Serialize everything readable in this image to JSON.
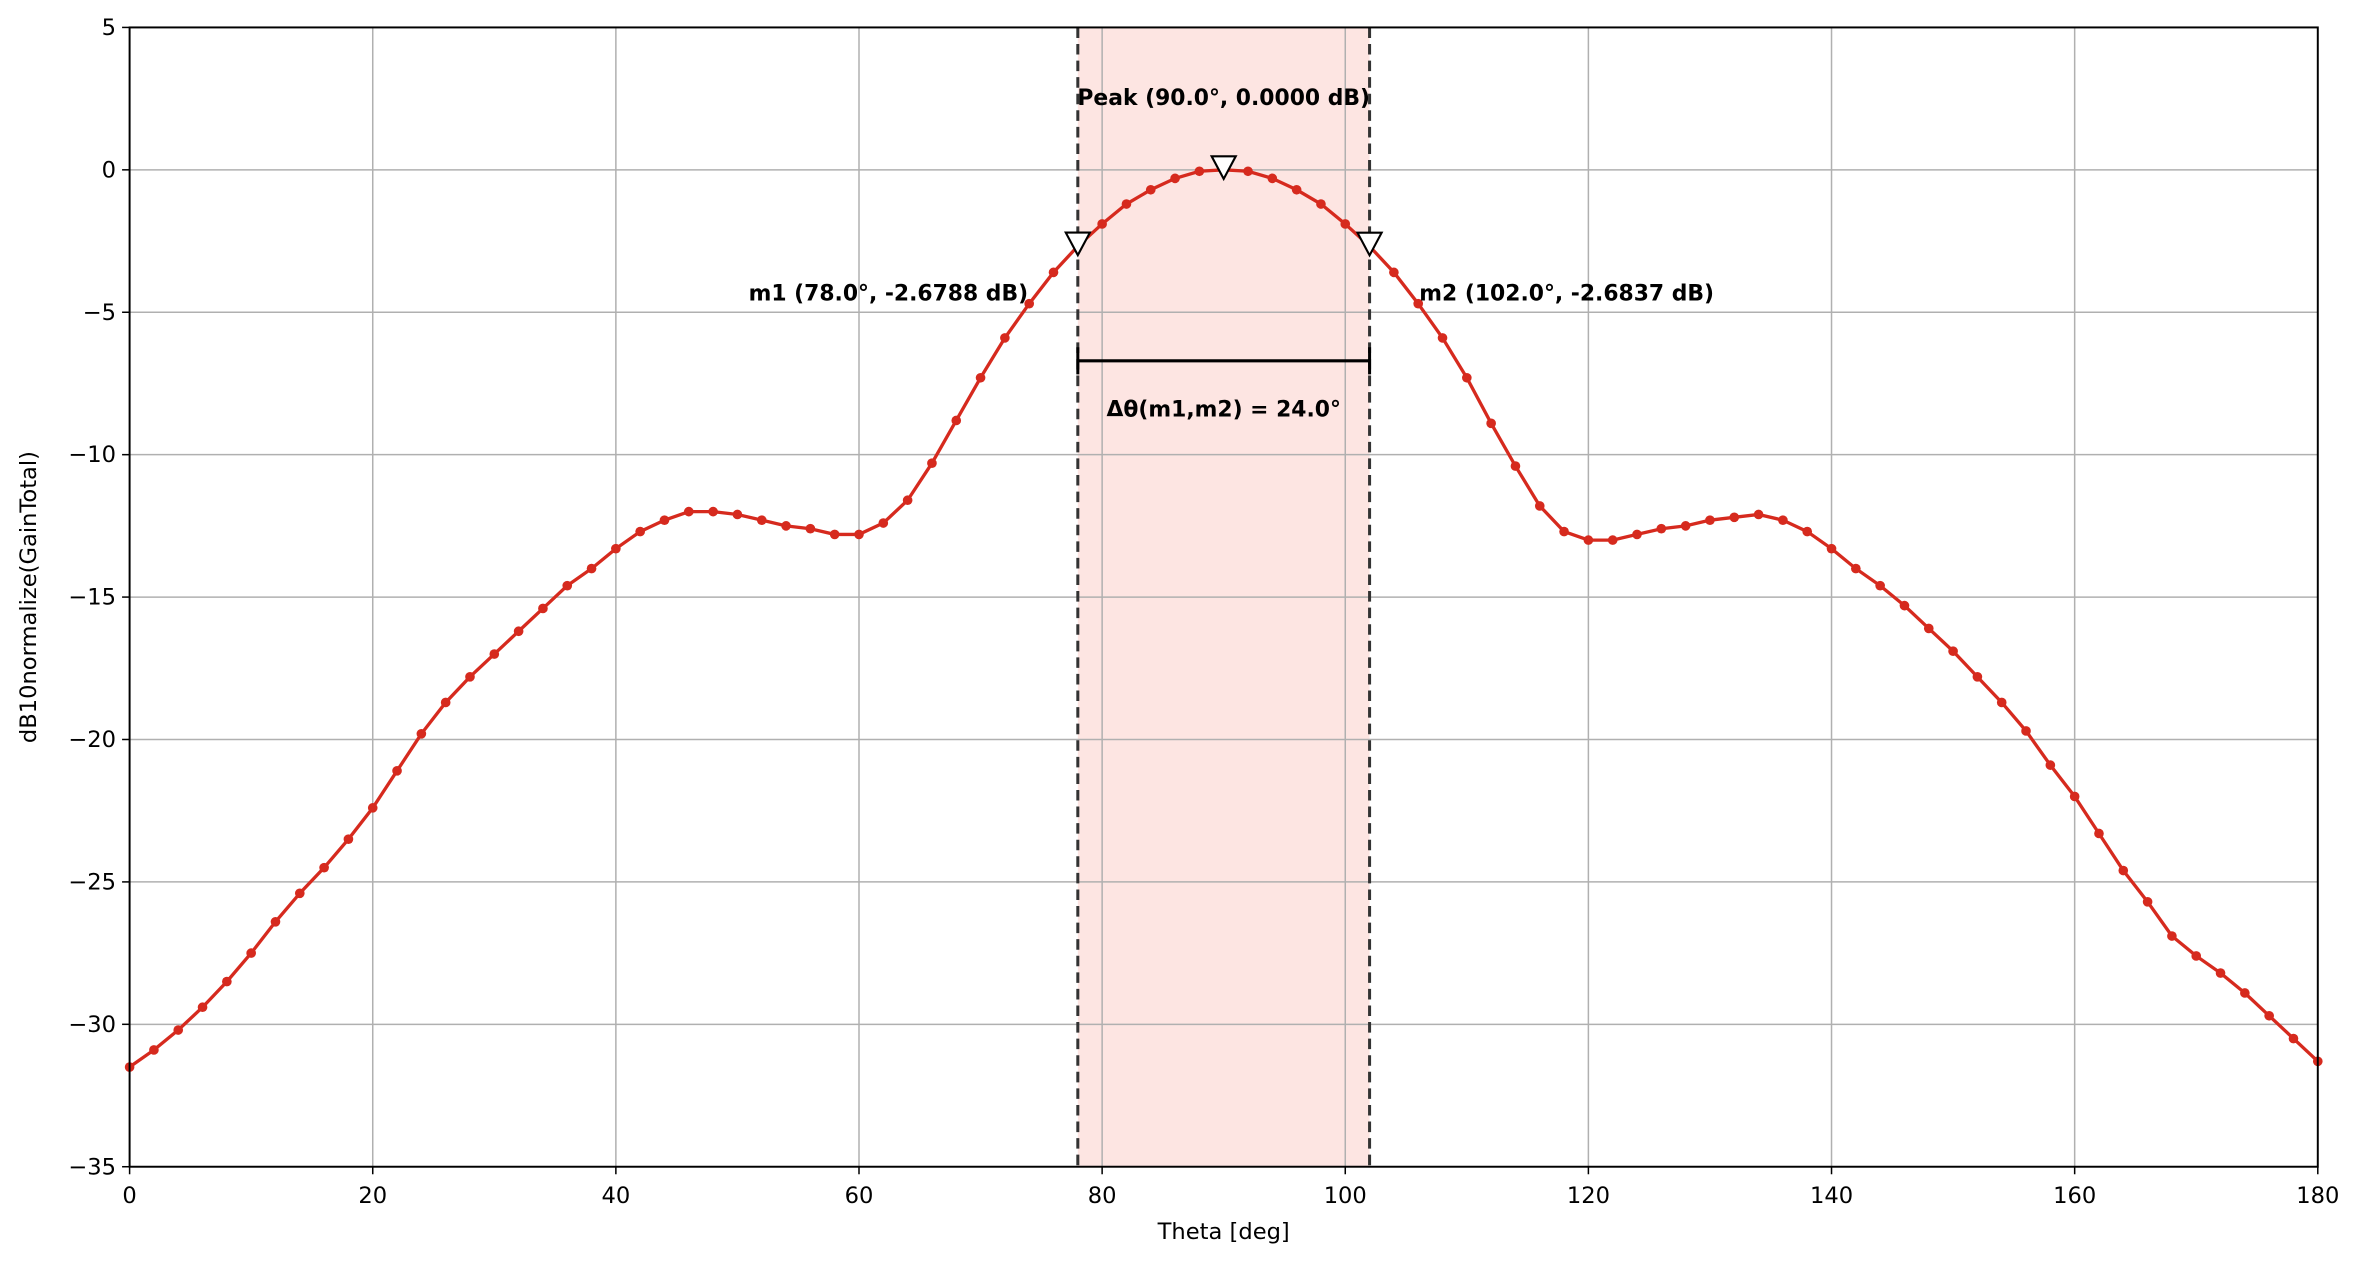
{
  "chart_data": {
    "type": "line",
    "xlabel": "Theta [deg]",
    "ylabel": "dB10normalize(GainTotal)",
    "x": [
      0,
      2,
      4,
      6,
      8,
      10,
      12,
      14,
      16,
      18,
      20,
      22,
      24,
      26,
      28,
      30,
      32,
      34,
      36,
      38,
      40,
      42,
      44,
      46,
      48,
      50,
      52,
      54,
      56,
      58,
      60,
      62,
      64,
      66,
      68,
      70,
      72,
      74,
      76,
      78,
      80,
      82,
      84,
      86,
      88,
      90,
      92,
      94,
      96,
      98,
      100,
      102,
      104,
      106,
      108,
      110,
      112,
      114,
      116,
      118,
      120,
      122,
      124,
      126,
      128,
      130,
      132,
      134,
      136,
      138,
      140,
      142,
      144,
      146,
      148,
      150,
      152,
      154,
      156,
      158,
      160,
      162,
      164,
      166,
      168,
      170,
      172,
      174,
      176,
      178,
      180
    ],
    "values": [
      -31.5,
      -30.9,
      -30.2,
      -29.4,
      -28.5,
      -27.5,
      -26.4,
      -25.4,
      -24.5,
      -23.5,
      -22.4,
      -21.1,
      -19.8,
      -18.7,
      -17.8,
      -17.0,
      -16.2,
      -15.4,
      -14.6,
      -14.0,
      -13.3,
      -12.7,
      -12.3,
      -12.0,
      -12.0,
      -12.1,
      -12.3,
      -12.5,
      -12.6,
      -12.8,
      -12.8,
      -12.4,
      -11.6,
      -10.3,
      -8.8,
      -7.3,
      -5.9,
      -4.7,
      -3.6,
      -2.6788,
      -1.9,
      -1.2,
      -0.7,
      -0.3,
      -0.05,
      0,
      -0.05,
      -0.3,
      -0.7,
      -1.2,
      -1.9,
      -2.6837,
      -3.6,
      -4.7,
      -5.9,
      -7.3,
      -8.9,
      -10.4,
      -11.8,
      -12.7,
      -13.0,
      -13.0,
      -12.8,
      -12.6,
      -12.5,
      -12.3,
      -12.2,
      -12.1,
      -12.3,
      -12.7,
      -13.3,
      -14.0,
      -14.6,
      -15.3,
      -16.1,
      -16.9,
      -17.8,
      -18.7,
      -19.7,
      -20.9,
      -22.0,
      -23.3,
      -24.6,
      -25.7,
      -26.9,
      -27.6,
      -28.2,
      -28.9,
      -29.7,
      -30.5,
      -31.3
    ],
    "color": "#d62a1e",
    "xlim": [
      0,
      180
    ],
    "ylim": [
      -35,
      5
    ],
    "xticks": [
      0,
      20,
      40,
      60,
      80,
      100,
      120,
      140,
      160,
      180
    ],
    "yticks": [
      {
        "value": -35,
        "label": "−35"
      },
      {
        "value": -30,
        "label": "−30"
      },
      {
        "value": -25,
        "label": "−25"
      },
      {
        "value": -20,
        "label": "−20"
      },
      {
        "value": -15,
        "label": "−15"
      },
      {
        "value": -10,
        "label": "−10"
      },
      {
        "value": -5,
        "label": "−5"
      },
      0,
      5
    ],
    "grid": true,
    "span": [
      78,
      102
    ],
    "span_color": "#fde5e2",
    "markers": [
      {
        "x": 90,
        "y": 0,
        "label": "Peak (90.0°, 0.0000 dB)"
      },
      {
        "x": 78,
        "y": -2.6788,
        "label": "m1 (78.0°, -2.6788 dB)"
      },
      {
        "x": 102,
        "y": -2.6837,
        "label": "m2 (102.0°, -2.6837 dB)"
      }
    ],
    "delta_label": "Δθ(m1,m2) = 24.0°"
  }
}
